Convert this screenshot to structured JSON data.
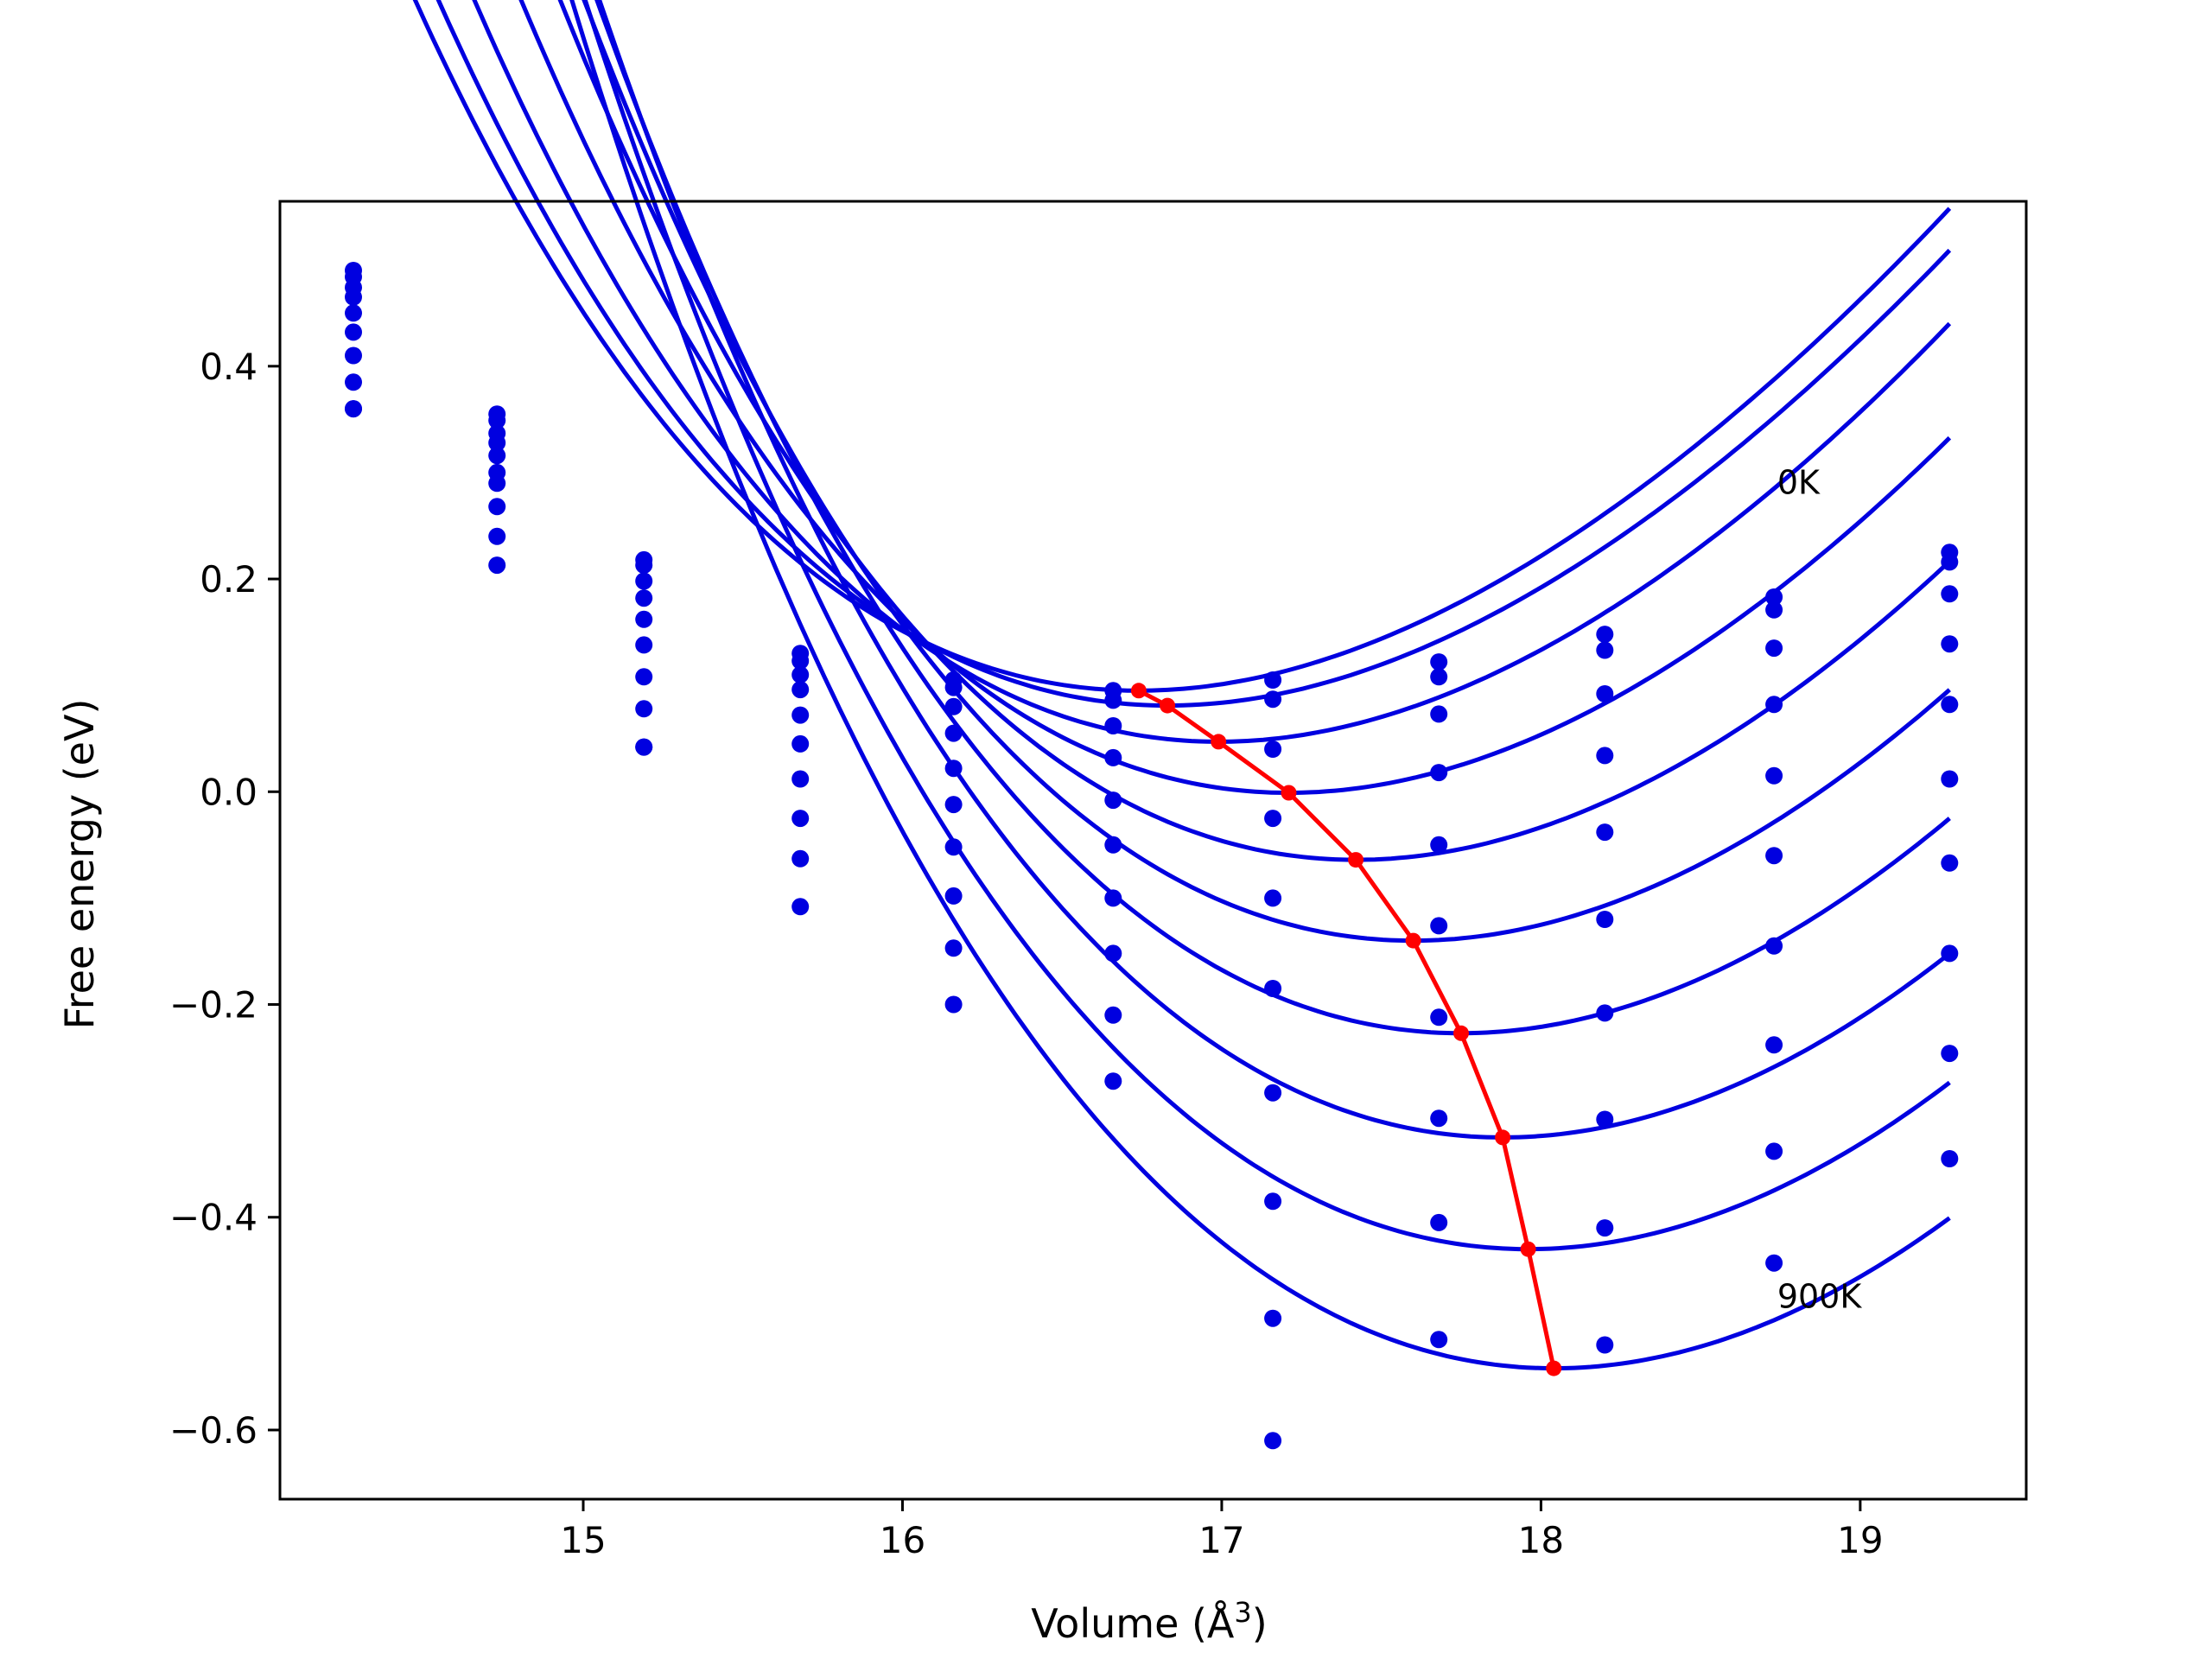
{
  "chart_data": {
    "type": "line",
    "xlabel": "Volume (Å",
    "xlabel_sup": "3",
    "xlabel_close": ")",
    "ylabel": "Free energy (eV)",
    "xlim": [
      14.05,
      19.52
    ],
    "ylim": [
      -0.665,
      0.555
    ],
    "xticks": [
      15,
      16,
      17,
      18,
      19
    ],
    "yticks": [
      0.4,
      0.2,
      0.0,
      -0.2,
      -0.4,
      -0.6
    ],
    "ytick_labels": [
      "0.4",
      "0.2",
      "0.0",
      "−0.2",
      "−0.4",
      "−0.6"
    ],
    "grid": false,
    "colors": {
      "curves": "#0000e0",
      "minima": "#ff0000",
      "frame": "#000000"
    },
    "annotations": [
      {
        "text": "0K",
        "x": 18.74,
        "y": 0.28
      },
      {
        "text": "900K",
        "x": 18.74,
        "y": -0.485
      }
    ],
    "volumes": [
      14.28,
      14.73,
      15.19,
      15.68,
      16.16,
      16.66,
      17.16,
      17.68,
      18.2,
      18.73,
      19.28
    ],
    "series": [
      {
        "values": [
          0.49,
          0.355,
          0.218,
          0.13,
          0.105,
          0.095,
          0.105,
          0.122,
          0.148,
          0.183,
          0.225
        ]
      },
      {
        "values": [
          0.484,
          0.349,
          0.213,
          0.123,
          0.098,
          0.086,
          0.087,
          0.108,
          0.133,
          0.171,
          0.216
        ]
      },
      {
        "values": [
          0.474,
          0.337,
          0.198,
          0.11,
          0.08,
          0.062,
          0.04,
          0.073,
          0.092,
          0.135,
          0.186
        ]
      },
      {
        "values": [
          0.465,
          0.328,
          0.182,
          0.096,
          0.055,
          0.032,
          -0.025,
          0.018,
          0.034,
          0.082,
          0.139
        ]
      },
      {
        "values": [
          0.45,
          0.316,
          0.162,
          0.072,
          0.022,
          -0.008,
          -0.1,
          -0.05,
          -0.038,
          0.015,
          0.082
        ]
      },
      {
        "values": [
          0.432,
          0.3,
          0.138,
          0.045,
          -0.012,
          -0.05,
          -0.185,
          -0.126,
          -0.12,
          -0.06,
          0.012
        ]
      },
      {
        "values": [
          0.41,
          0.29,
          0.108,
          0.012,
          -0.052,
          -0.1,
          -0.283,
          -0.212,
          -0.208,
          -0.145,
          -0.067
        ]
      },
      {
        "values": [
          0.385,
          0.268,
          0.078,
          -0.025,
          -0.098,
          -0.152,
          -0.385,
          -0.307,
          -0.308,
          -0.238,
          -0.152
        ]
      },
      {
        "values": [
          0.36,
          0.24,
          0.042,
          -0.063,
          -0.147,
          -0.21,
          -0.495,
          -0.405,
          -0.41,
          -0.338,
          -0.246
        ]
      },
      {
        "values": [
          0.36,
          0.213,
          0.042,
          -0.108,
          -0.2,
          -0.272,
          -0.61,
          -0.515,
          -0.52,
          -0.443,
          -0.345
        ]
      }
    ],
    "fits": [
      {
        "v0": 16.74,
        "e0": 0.095,
        "a": 0.093,
        "b": -0.012,
        "c": 0.0012,
        "vmin": 14.28,
        "vmax": 19.28
      },
      {
        "v0": 16.83,
        "e0": 0.081,
        "a": 0.0935,
        "b": -0.012,
        "c": 0.0012,
        "vmin": 14.28,
        "vmax": 19.28
      },
      {
        "v0": 16.99,
        "e0": 0.047,
        "a": 0.095,
        "b": -0.0115,
        "c": 0.0012,
        "vmin": 14.28,
        "vmax": 19.28
      },
      {
        "v0": 17.21,
        "e0": -0.001,
        "a": 0.0955,
        "b": -0.011,
        "c": 0.0012,
        "vmin": 14.28,
        "vmax": 19.28
      },
      {
        "v0": 17.42,
        "e0": -0.064,
        "a": 0.0965,
        "b": -0.0105,
        "c": 0.0012,
        "vmin": 14.28,
        "vmax": 19.28
      },
      {
        "v0": 17.6,
        "e0": -0.14,
        "a": 0.097,
        "b": -0.01,
        "c": 0.0012,
        "vmin": 14.28,
        "vmax": 19.28
      },
      {
        "v0": 17.75,
        "e0": -0.227,
        "a": 0.098,
        "b": -0.0095,
        "c": 0.0012,
        "vmin": 14.28,
        "vmax": 19.28
      },
      {
        "v0": 17.88,
        "e0": -0.325,
        "a": 0.0985,
        "b": -0.009,
        "c": 0.0012,
        "vmin": 14.28,
        "vmax": 19.28
      },
      {
        "v0": 17.96,
        "e0": -0.43,
        "a": 0.099,
        "b": -0.0085,
        "c": 0.0012,
        "vmin": 14.28,
        "vmax": 19.28
      },
      {
        "v0": 18.04,
        "e0": -0.542,
        "a": 0.1,
        "b": -0.008,
        "c": 0.0012,
        "vmin": 14.28,
        "vmax": 19.28
      }
    ],
    "minima": {
      "x": [
        16.74,
        16.83,
        16.99,
        17.21,
        17.42,
        17.6,
        17.75,
        17.88,
        17.96,
        18.04
      ],
      "y": [
        0.095,
        0.081,
        0.047,
        -0.001,
        -0.064,
        -0.14,
        -0.227,
        -0.325,
        -0.43,
        -0.542
      ]
    }
  }
}
